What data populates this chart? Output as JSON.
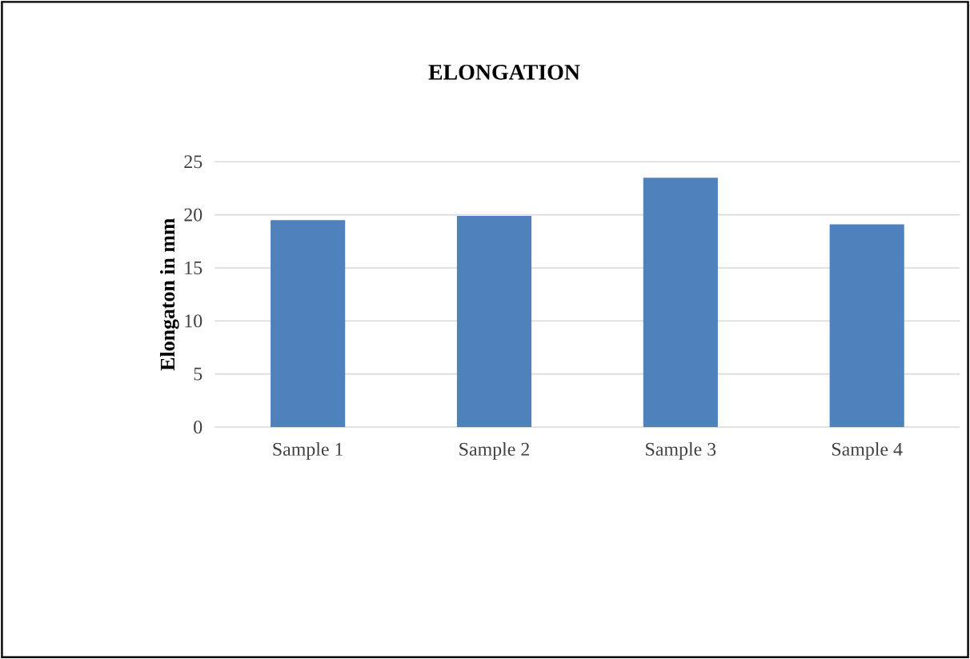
{
  "chart_data": {
    "type": "bar",
    "title": "ELONGATION",
    "ylabel": "Elongaton in mm",
    "categories": [
      "Sample 1",
      "Sample 2",
      "Sample 3",
      "Sample 4"
    ],
    "values": [
      19.5,
      19.9,
      23.5,
      19.1
    ],
    "color": "#4f81bd",
    "ylim": [
      0,
      25
    ],
    "yticks": [
      0,
      5,
      10,
      15,
      20,
      25
    ],
    "grid": "y"
  }
}
